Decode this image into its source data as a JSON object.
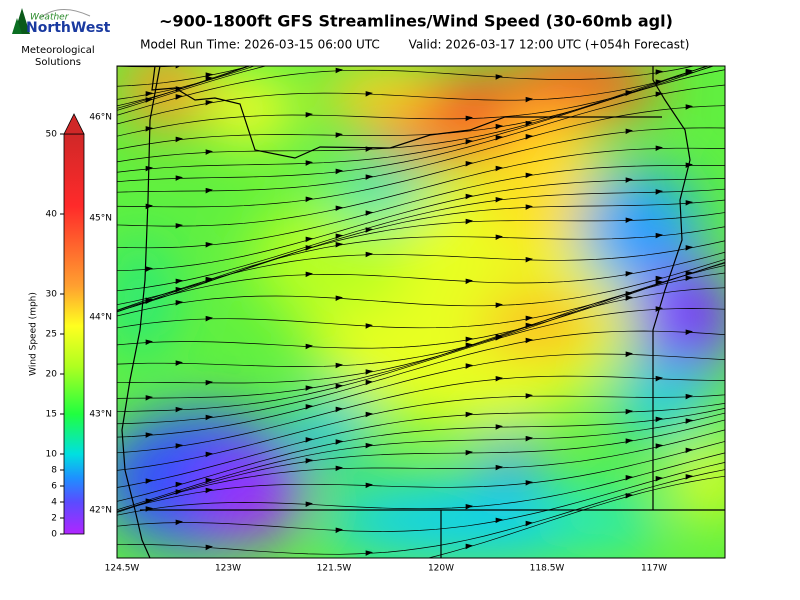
{
  "header": {
    "title": "~900-1800ft GFS Streamlines/Wind Speed (30-60mb agl)",
    "run_time": "Model Run Time: 2026-03-15 06:00 UTC",
    "valid_time": "Valid: 2026-03-17 12:00 UTC  (+054h Forecast)"
  },
  "logo": {
    "name_top": "Weather",
    "name_main": "NorthWest",
    "tagline": [
      "Meteorological",
      "Solutions"
    ]
  },
  "colorbar": {
    "label": "Wind Speed (mph)",
    "range": [
      0,
      50
    ],
    "ticks": [
      0,
      2,
      4,
      6,
      8,
      10,
      15,
      20,
      25,
      30,
      40,
      50
    ]
  },
  "map": {
    "lat_labels": [
      "46°N",
      "45°N",
      "44°N",
      "43°N",
      "42°N"
    ],
    "lon_labels": [
      "124.5W",
      "123W",
      "121.5W",
      "120W",
      "118.5W",
      "117W"
    ]
  }
}
